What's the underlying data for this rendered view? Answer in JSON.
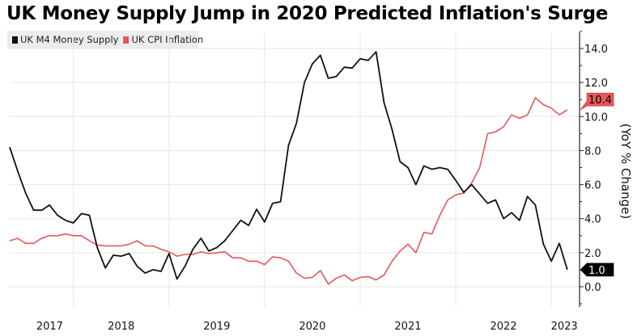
{
  "title": "UK Money Supply Jump in 2020 Predicted Inflation's Surge",
  "chart_data": {
    "type": "line",
    "title": "UK Money Supply Jump in 2020 Predicted Inflation's Surge",
    "ylabel": "(YoY % Change)",
    "xlabel": "",
    "ylim": [
      -1.2,
      15.3
    ],
    "y_ticks": [
      "0.0",
      "2.0",
      "4.0",
      "6.0",
      "8.0",
      "10.0",
      "12.0",
      "14.0"
    ],
    "y_axis_side": "right",
    "x_tick_labels": [
      "2017",
      "2018",
      "2019",
      "2020",
      "2021",
      "2022",
      "2023"
    ],
    "x_start": "2017-05",
    "x_end": "2023-03",
    "x_frequency": "monthly",
    "grid": true,
    "legend_position": "top-left",
    "series": [
      {
        "name": "UK M4 Money Supply",
        "color": "#111111",
        "last_value_label": "1.0",
        "values": [
          8.2,
          6.8,
          5.5,
          4.5,
          4.5,
          4.8,
          4.2,
          3.9,
          3.75,
          4.3,
          4.2,
          2.3,
          1.1,
          1.85,
          1.8,
          1.95,
          1.2,
          0.8,
          1.0,
          0.9,
          1.95,
          0.45,
          1.2,
          2.2,
          2.85,
          2.1,
          2.3,
          2.7,
          3.3,
          3.9,
          3.6,
          4.55,
          3.8,
          4.9,
          5.0,
          8.3,
          9.6,
          12.0,
          13.1,
          13.6,
          12.25,
          12.35,
          12.9,
          12.85,
          13.4,
          13.3,
          13.8,
          10.8,
          9.25,
          7.35,
          7.0,
          6.0,
          7.1,
          6.9,
          7.0,
          6.9,
          6.25,
          5.55,
          6.0,
          5.45,
          4.9,
          5.1,
          4.0,
          4.35,
          3.9,
          5.3,
          4.8,
          2.5,
          1.5,
          2.55,
          1.0
        ]
      },
      {
        "name": "UK CPI Inflation",
        "color": "#e8575a",
        "last_value_label": "10.4",
        "values": [
          2.7,
          2.85,
          2.55,
          2.55,
          2.85,
          3.0,
          3.0,
          3.1,
          3.0,
          3.0,
          2.7,
          2.45,
          2.4,
          2.4,
          2.4,
          2.5,
          2.7,
          2.4,
          2.4,
          2.2,
          2.05,
          1.8,
          1.9,
          1.9,
          2.05,
          1.95,
          2.0,
          2.05,
          1.7,
          1.7,
          1.5,
          1.5,
          1.3,
          1.75,
          1.7,
          1.5,
          0.8,
          0.5,
          0.55,
          0.95,
          0.15,
          0.5,
          0.7,
          0.35,
          0.55,
          0.6,
          0.4,
          0.7,
          1.5,
          2.1,
          2.5,
          2.0,
          3.2,
          3.1,
          4.2,
          5.1,
          5.4,
          5.5,
          6.1,
          7.0,
          9.0,
          9.1,
          9.4,
          10.1,
          9.9,
          10.1,
          11.1,
          10.7,
          10.5,
          10.1,
          10.4
        ]
      }
    ]
  }
}
